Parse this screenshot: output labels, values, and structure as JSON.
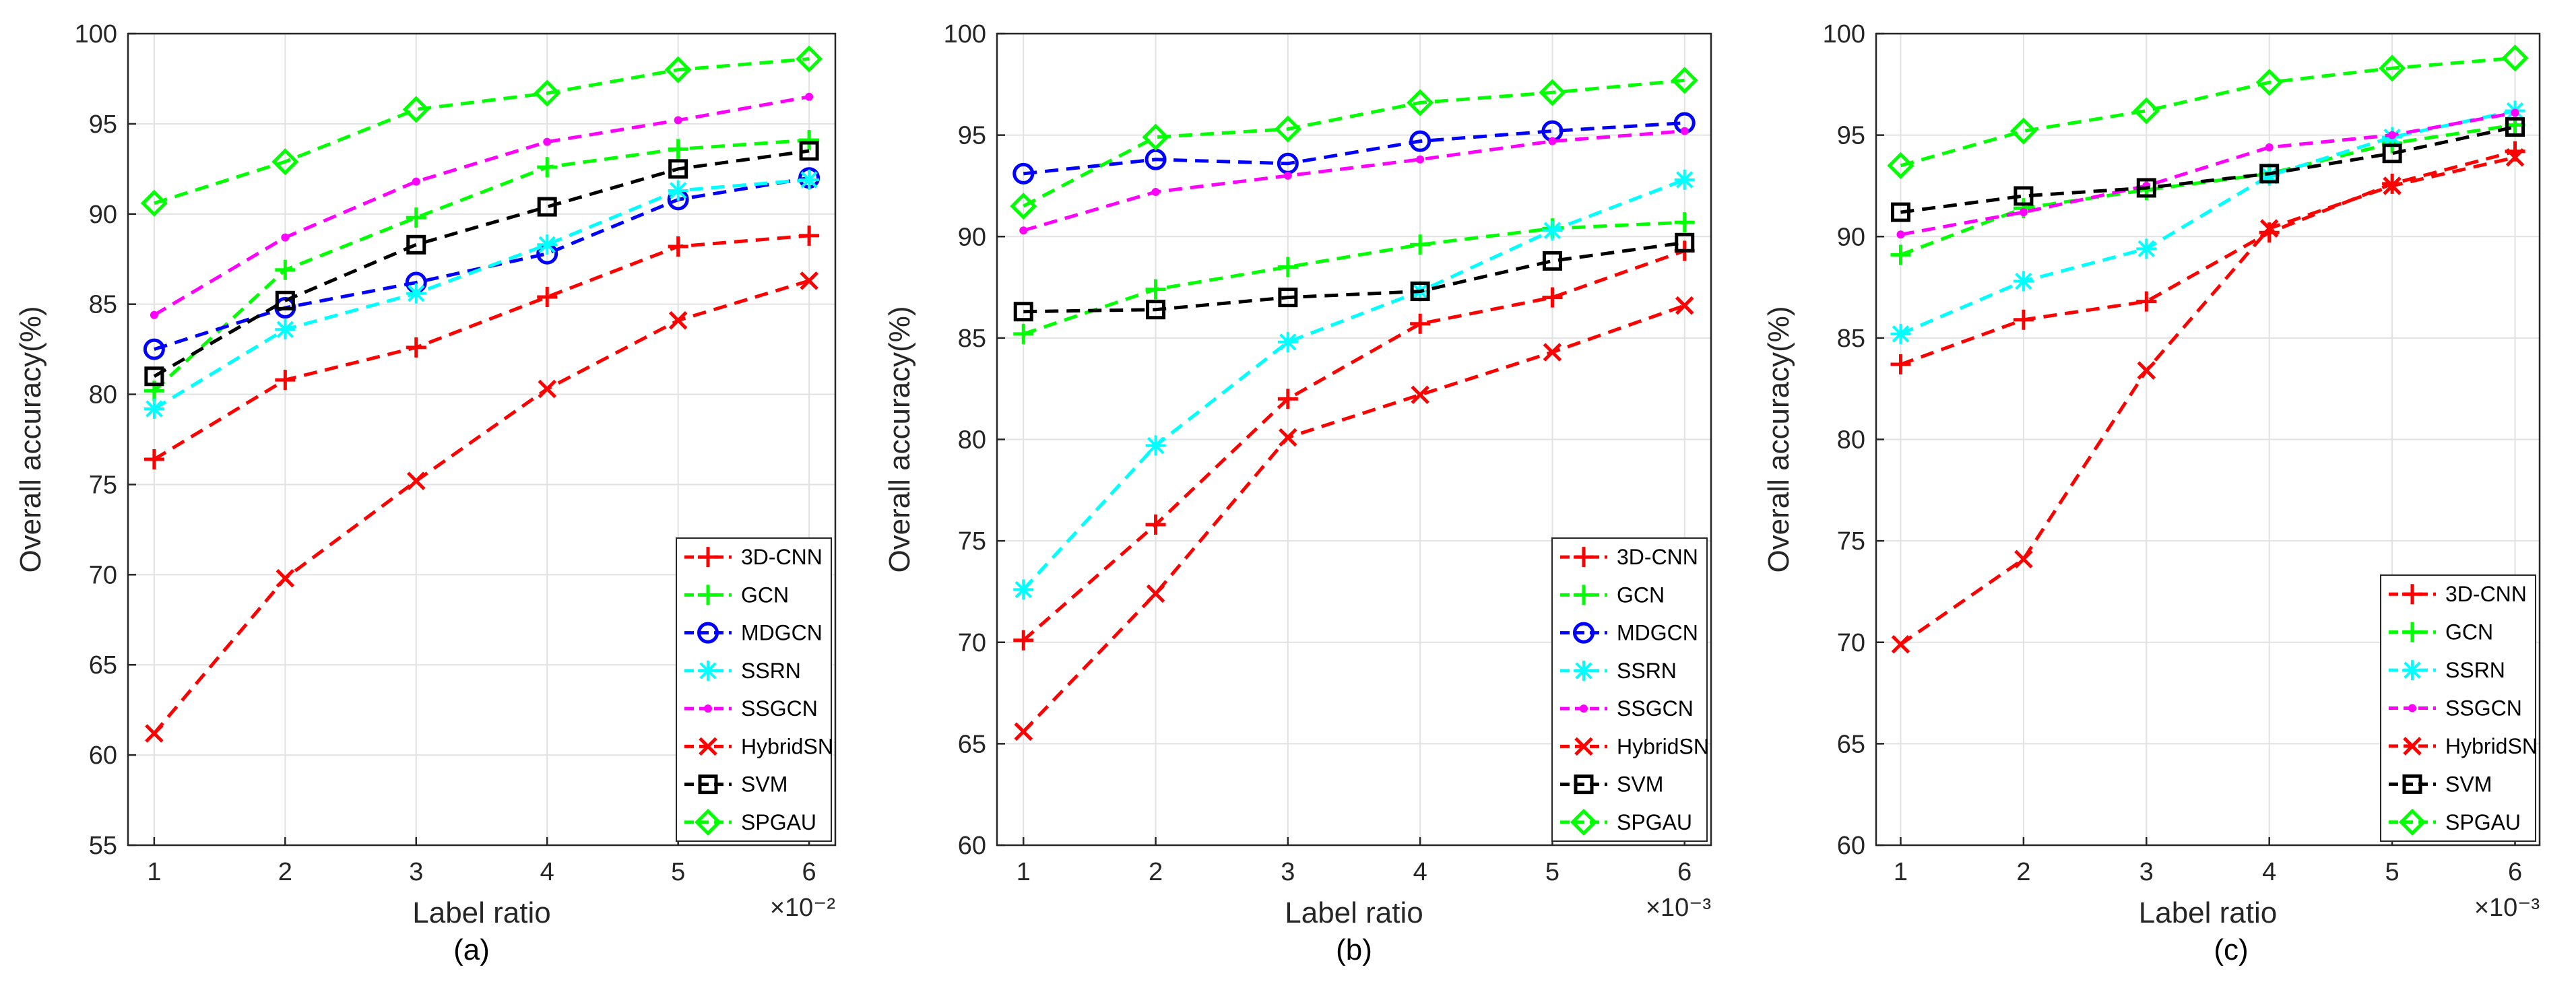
{
  "figure": {
    "subcaptions": [
      "(a)",
      "(b)",
      "(c)"
    ]
  },
  "chart_data": [
    {
      "type": "line",
      "panel": "(a)",
      "xlabel": "Label ratio",
      "ylabel": "Overall accuracy(%)",
      "x_exponent": "×10⁻²",
      "x": [
        1,
        2,
        3,
        4,
        5,
        6
      ],
      "xlim": [
        0.8,
        6.2
      ],
      "ylim": [
        55,
        100
      ],
      "yticks": [
        55,
        60,
        65,
        70,
        75,
        80,
        85,
        90,
        95,
        100
      ],
      "grid": true,
      "legend_position": "bottom-right",
      "series": [
        {
          "name": "3D-CNN",
          "color": "#ff0000",
          "marker": "plus",
          "values": [
            76.4,
            80.8,
            82.6,
            85.4,
            88.2,
            88.8
          ]
        },
        {
          "name": "GCN",
          "color": "#00ff00",
          "marker": "plus",
          "values": [
            80.2,
            86.9,
            89.8,
            92.6,
            93.6,
            94.1
          ]
        },
        {
          "name": "MDGCN",
          "color": "#0000ff",
          "marker": "circle",
          "values": [
            82.5,
            84.8,
            86.2,
            87.8,
            90.8,
            92.0
          ]
        },
        {
          "name": "SSRN",
          "color": "#00ffff",
          "marker": "asterisk",
          "values": [
            79.2,
            83.6,
            85.6,
            88.3,
            91.3,
            91.9
          ]
        },
        {
          "name": "SSGCN",
          "color": "#ff00ff",
          "marker": "point",
          "values": [
            84.4,
            88.7,
            91.8,
            94.0,
            95.2,
            96.5
          ]
        },
        {
          "name": "HybridSN",
          "color": "#ff0000",
          "marker": "x",
          "values": [
            61.2,
            69.8,
            75.2,
            80.3,
            84.1,
            86.3
          ]
        },
        {
          "name": "SVM",
          "color": "#000000",
          "marker": "square",
          "values": [
            81.0,
            85.2,
            88.3,
            90.4,
            92.5,
            93.5
          ]
        },
        {
          "name": "SPGAU",
          "color": "#00ff00",
          "marker": "diamond",
          "values": [
            90.6,
            92.9,
            95.8,
            96.7,
            98.0,
            98.6
          ]
        }
      ]
    },
    {
      "type": "line",
      "panel": "(b)",
      "xlabel": "Label ratio",
      "ylabel": "Overall accuracy(%)",
      "x_exponent": "×10⁻³",
      "x": [
        1,
        2,
        3,
        4,
        5,
        6
      ],
      "xlim": [
        0.8,
        6.2
      ],
      "ylim": [
        60,
        100
      ],
      "yticks": [
        60,
        65,
        70,
        75,
        80,
        85,
        90,
        95,
        100
      ],
      "grid": true,
      "legend_position": "bottom-right",
      "series": [
        {
          "name": "3D-CNN",
          "color": "#ff0000",
          "marker": "plus",
          "values": [
            70.1,
            75.8,
            82.0,
            85.7,
            87.0,
            89.3
          ]
        },
        {
          "name": "GCN",
          "color": "#00ff00",
          "marker": "plus",
          "values": [
            85.2,
            87.4,
            88.5,
            89.6,
            90.4,
            90.7
          ]
        },
        {
          "name": "MDGCN",
          "color": "#0000ff",
          "marker": "circle",
          "values": [
            93.1,
            93.8,
            93.6,
            94.7,
            95.2,
            95.6
          ]
        },
        {
          "name": "SSRN",
          "color": "#00ffff",
          "marker": "asterisk",
          "values": [
            72.6,
            79.7,
            84.8,
            87.3,
            90.3,
            92.8
          ]
        },
        {
          "name": "SSGCN",
          "color": "#ff00ff",
          "marker": "point",
          "values": [
            90.3,
            92.2,
            93.0,
            93.8,
            94.7,
            95.2
          ]
        },
        {
          "name": "HybridSN",
          "color": "#ff0000",
          "marker": "x",
          "values": [
            65.6,
            72.4,
            80.1,
            82.2,
            84.3,
            86.6
          ]
        },
        {
          "name": "SVM",
          "color": "#000000",
          "marker": "square",
          "values": [
            86.3,
            86.4,
            87.0,
            87.3,
            88.8,
            89.7
          ]
        },
        {
          "name": "SPGAU",
          "color": "#00ff00",
          "marker": "diamond",
          "values": [
            91.5,
            94.9,
            95.3,
            96.6,
            97.1,
            97.7
          ]
        }
      ]
    },
    {
      "type": "line",
      "panel": "(c)",
      "xlabel": "Label ratio",
      "ylabel": "Overall accuracy(%)",
      "x_exponent": "×10⁻³",
      "x": [
        1,
        2,
        3,
        4,
        5,
        6
      ],
      "xlim": [
        0.8,
        6.2
      ],
      "ylim": [
        60,
        100
      ],
      "yticks": [
        60,
        65,
        70,
        75,
        80,
        85,
        90,
        95,
        100
      ],
      "grid": true,
      "legend_position": "bottom-right",
      "series": [
        {
          "name": "3D-CNN",
          "color": "#ff0000",
          "marker": "plus",
          "values": [
            83.7,
            85.9,
            86.8,
            90.2,
            92.6,
            94.2
          ]
        },
        {
          "name": "GCN",
          "color": "#00ff00",
          "marker": "plus",
          "values": [
            89.1,
            91.4,
            92.3,
            93.1,
            94.6,
            95.5
          ]
        },
        {
          "name": "SSRN",
          "color": "#00ffff",
          "marker": "asterisk",
          "values": [
            85.2,
            87.8,
            89.4,
            93.0,
            94.9,
            96.2
          ]
        },
        {
          "name": "SSGCN",
          "color": "#ff00ff",
          "marker": "point",
          "values": [
            90.1,
            91.2,
            92.5,
            94.4,
            95.0,
            96.1
          ]
        },
        {
          "name": "HybridSN",
          "color": "#ff0000",
          "marker": "x",
          "values": [
            69.9,
            74.1,
            83.4,
            90.4,
            92.5,
            93.9
          ]
        },
        {
          "name": "SVM",
          "color": "#000000",
          "marker": "square",
          "values": [
            91.2,
            92.0,
            92.4,
            93.1,
            94.1,
            95.4
          ]
        },
        {
          "name": "SPGAU",
          "color": "#00ff00",
          "marker": "diamond",
          "values": [
            93.5,
            95.2,
            96.2,
            97.6,
            98.3,
            98.8
          ]
        }
      ]
    }
  ]
}
